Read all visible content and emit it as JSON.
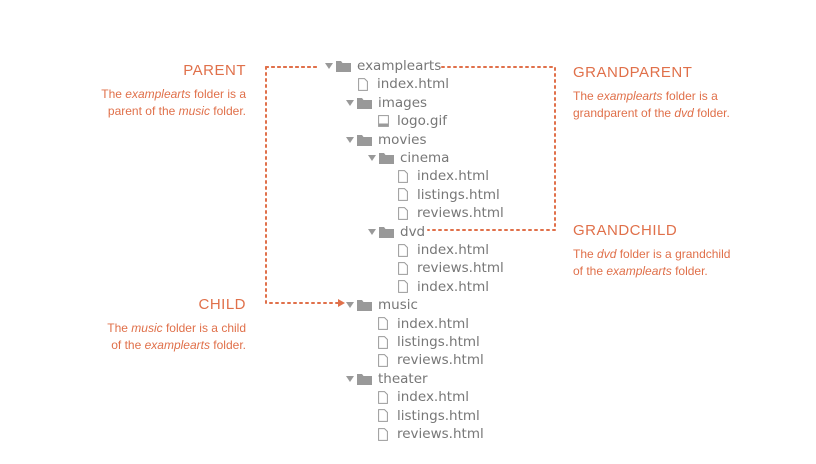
{
  "annotations": {
    "parent": {
      "title": "PARENT",
      "line1": [
        "The ",
        "examplearts",
        " folder is a"
      ],
      "line2": [
        "parent of the ",
        "music",
        " folder."
      ]
    },
    "grandparent": {
      "title": "GRANDPARENT",
      "line1": [
        "The ",
        "examplearts",
        " folder is a"
      ],
      "line2": [
        "grandparent of the ",
        "dvd",
        " folder."
      ]
    },
    "grandchild": {
      "title": "GRANDCHILD",
      "line1": [
        "The ",
        "dvd",
        " folder is a grandchild"
      ],
      "line2": [
        "of the ",
        "examplearts",
        " folder."
      ]
    },
    "child": {
      "title": "CHILD",
      "line1": [
        "The ",
        "music",
        " folder is a child"
      ],
      "line2": [
        "of the ",
        "examplearts",
        " folder."
      ]
    }
  },
  "tree": [
    {
      "type": "folder",
      "name": "examplearts",
      "depth": 0
    },
    {
      "type": "file",
      "name": "index.html",
      "depth": 1
    },
    {
      "type": "folder",
      "name": "images",
      "depth": 1
    },
    {
      "type": "image",
      "name": "logo.gif",
      "depth": 2
    },
    {
      "type": "folder",
      "name": "movies",
      "depth": 1
    },
    {
      "type": "folder",
      "name": "cinema",
      "depth": 2
    },
    {
      "type": "file",
      "name": "index.html",
      "depth": 3
    },
    {
      "type": "file",
      "name": "listings.html",
      "depth": 3
    },
    {
      "type": "file",
      "name": "reviews.html",
      "depth": 3
    },
    {
      "type": "folder",
      "name": "dvd",
      "depth": 2
    },
    {
      "type": "file",
      "name": "index.html",
      "depth": 3
    },
    {
      "type": "file",
      "name": "reviews.html",
      "depth": 3
    },
    {
      "type": "file",
      "name": "index.html",
      "depth": 3
    },
    {
      "type": "folder",
      "name": "music",
      "depth": 1
    },
    {
      "type": "file",
      "name": "index.html",
      "depth": 2
    },
    {
      "type": "file",
      "name": "listings.html",
      "depth": 2
    },
    {
      "type": "file",
      "name": "reviews.html",
      "depth": 2
    },
    {
      "type": "folder",
      "name": "theater",
      "depth": 1
    },
    {
      "type": "file",
      "name": "index.html",
      "depth": 2
    },
    {
      "type": "file",
      "name": "listings.html",
      "depth": 2
    },
    {
      "type": "file",
      "name": "reviews.html",
      "depth": 2
    }
  ],
  "colors": {
    "accent": "#e0704a",
    "tree_text": "#777777",
    "icon": "#999999"
  }
}
